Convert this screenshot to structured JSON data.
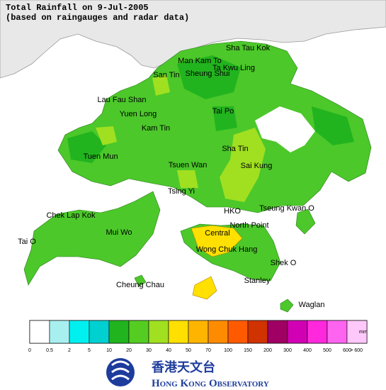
{
  "header": {
    "title": "Total Rainfall on 9-Jul-2005",
    "subtitle": "(based on raingauges and radar data)"
  },
  "places": [
    "Sha Tau Kok",
    "Man Kam To",
    "Ta Kwu Ling",
    "Sheung Shui",
    "San Tin",
    "Lau Fau Shan",
    "Yuen Long",
    "Tai Po",
    "Kam Tin",
    "Sha Tin",
    "Tuen Mun",
    "Tsuen Wan",
    "Sai Kung",
    "Tsing Yi",
    "Chek Lap Kok",
    "HKO",
    "Tseung Kwan O",
    "North Point",
    "Mui Wo",
    "Central",
    "Tai O",
    "Wong Chuk Hang",
    "Shek O",
    "Stanley",
    "Cheung Chau",
    "Waglan"
  ],
  "legend": {
    "unit": "mm",
    "colors": [
      "#ffffff",
      "#a8f0f0",
      "#00f0f0",
      "#00d0d0",
      "#22b41e",
      "#55cc22",
      "#a0e020",
      "#ffe000",
      "#ffb400",
      "#ff8c00",
      "#ff5a00",
      "#d03200",
      "#a00064",
      "#d200b4",
      "#ff28dc",
      "#ff64f0",
      "#ffc8fa"
    ],
    "labels": [
      "0",
      "0.5",
      "2",
      "5",
      "10",
      "20",
      "30",
      "40",
      "50",
      "70",
      "100",
      "150",
      "200",
      "300",
      "400",
      "500",
      "600",
      "> 600"
    ]
  },
  "logo": {
    "chinese": "香港天文台",
    "english": "Hong Kong Observatory"
  }
}
